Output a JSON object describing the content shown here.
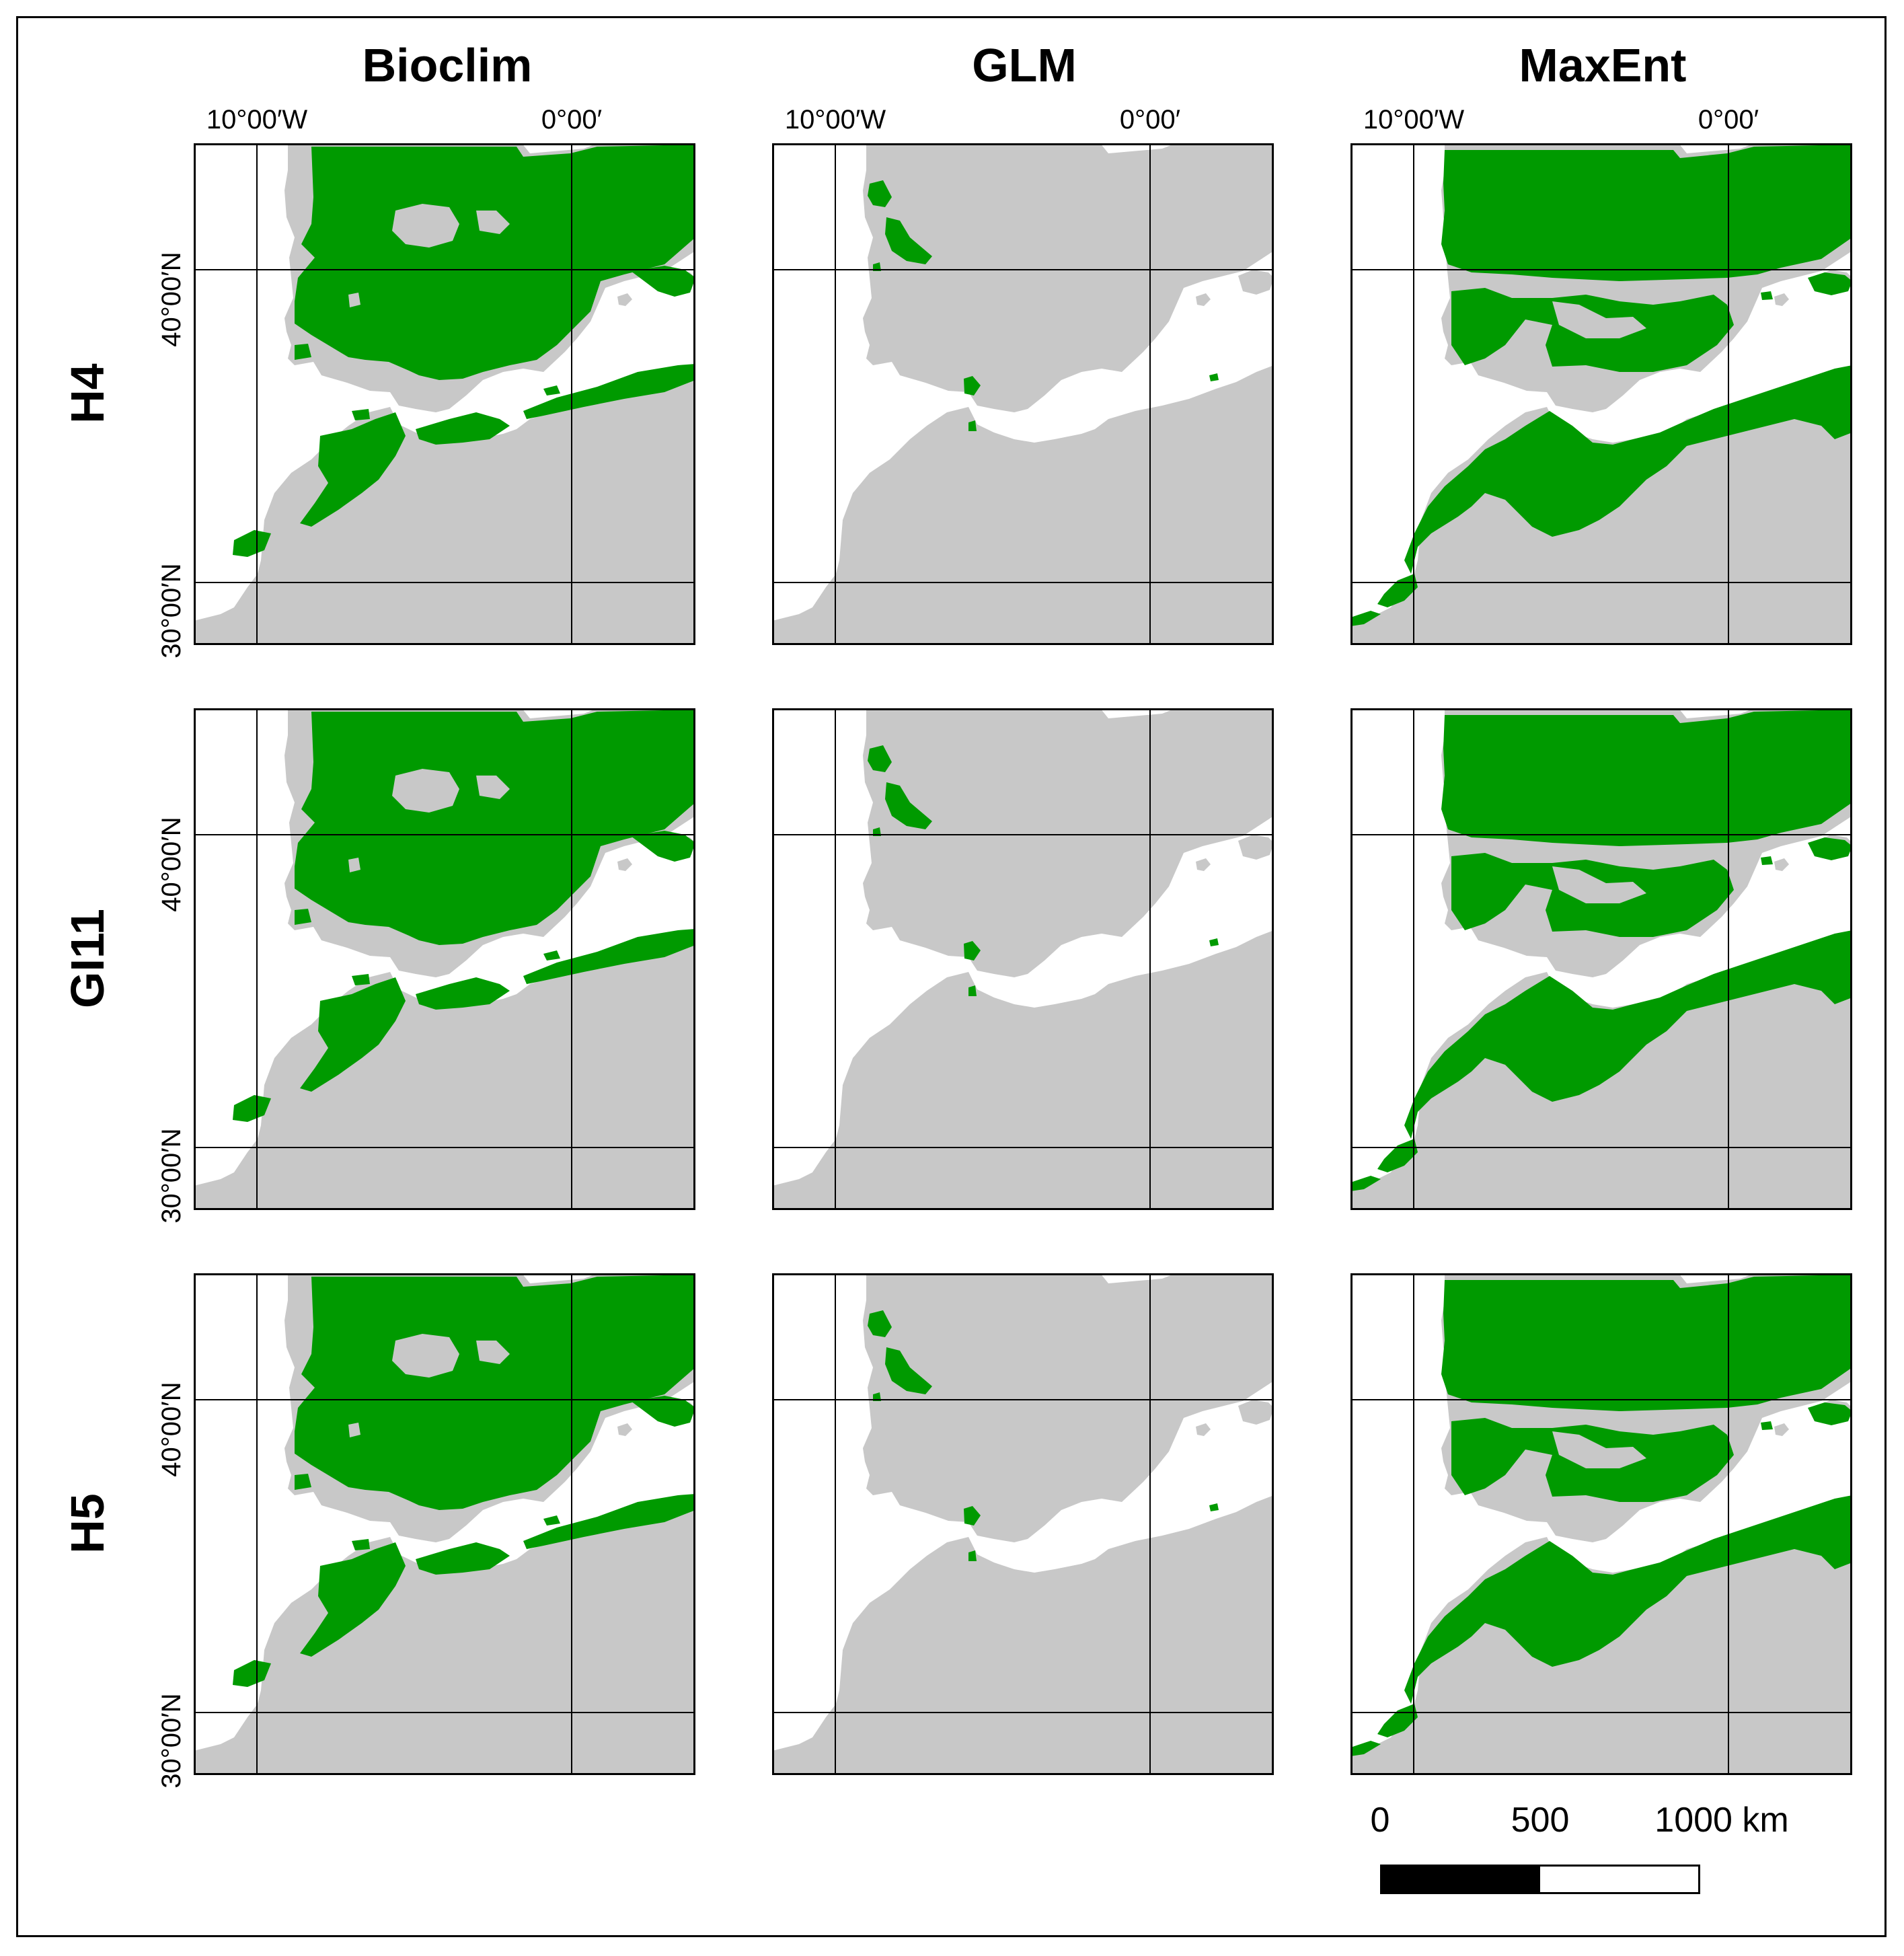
{
  "columns": [
    "Bioclim",
    "GLM",
    "MaxEnt"
  ],
  "rows": [
    "H4",
    "GI11",
    "H5"
  ],
  "axes": {
    "lon_west": "10°00′W",
    "lon_zero": "0°00′",
    "lat_north": "40°00′N",
    "lat_south": "30°00′N"
  },
  "scale_bar": {
    "label_0": "0",
    "label_mid": "500",
    "label_max": "1000 km"
  },
  "colors": {
    "land": "#c8c8c8",
    "suitable": "#009a00",
    "sea": "#ffffff",
    "grid": "#000000"
  },
  "legend_semantics": {
    "suitable_area": "green",
    "unsuitable_land": "grey"
  }
}
